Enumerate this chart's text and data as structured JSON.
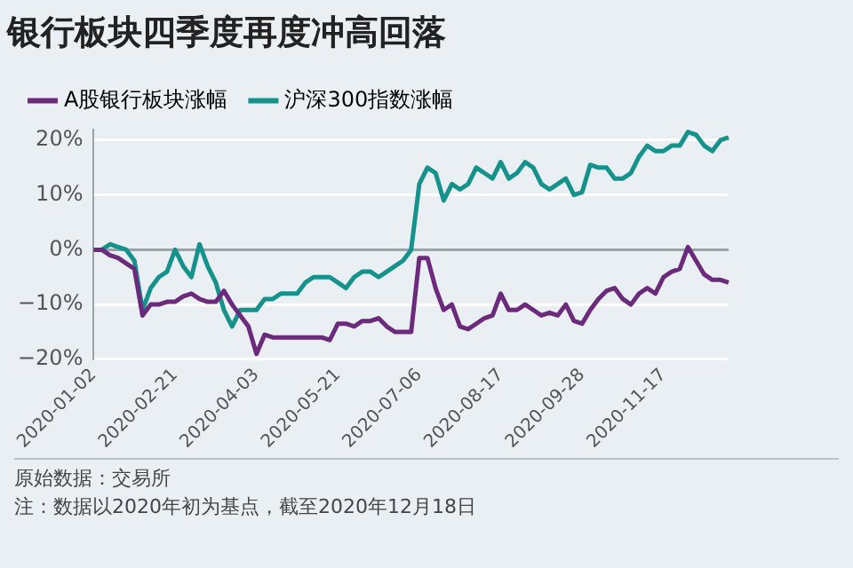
{
  "chart_data": {
    "type": "line",
    "title": "银行板块四季度再度冲高回落",
    "categories": [
      "2020-01-02",
      null,
      null,
      null,
      null,
      null,
      null,
      null,
      null,
      null,
      "2020-02-21",
      null,
      null,
      null,
      null,
      null,
      null,
      null,
      null,
      null,
      "2020-04-03",
      null,
      null,
      null,
      null,
      null,
      null,
      null,
      null,
      null,
      "2020-05-21",
      null,
      null,
      null,
      null,
      null,
      null,
      null,
      null,
      null,
      "2020-07-06",
      null,
      null,
      null,
      null,
      null,
      null,
      null,
      null,
      null,
      "2020-08-17",
      null,
      null,
      null,
      null,
      null,
      null,
      null,
      null,
      null,
      "2020-09-28",
      null,
      null,
      null,
      null,
      null,
      null,
      null,
      null,
      null,
      "2020-11-17",
      null,
      null,
      null,
      null,
      null,
      null,
      null,
      null
    ],
    "series": [
      {
        "name": "A股银行板块涨幅",
        "color": "#6b2a7c",
        "values": [
          0,
          0,
          -1,
          -1.5,
          -2.5,
          -3.5,
          -12,
          -10,
          -10,
          -9.5,
          -9.5,
          -8.5,
          -8,
          -9,
          -9.5,
          -9.5,
          -7.5,
          -10,
          -12,
          -14,
          -19,
          -15.5,
          -16,
          -16,
          -16,
          -16,
          -16,
          -16,
          -16,
          -16.5,
          -13.5,
          -13.5,
          -14,
          -13,
          -13,
          -12.5,
          -14,
          -15,
          -15,
          -15,
          -1.5,
          -1.5,
          -7,
          -11,
          -10,
          -14,
          -14.5,
          -13.5,
          -12.5,
          -12,
          -8,
          -11,
          -11,
          -10,
          -11,
          -12,
          -11.5,
          -12,
          -10,
          -13,
          -13.5,
          -11,
          -9,
          -7.5,
          -7,
          -9,
          -10,
          -8,
          -7,
          -8,
          -5,
          -4,
          -3.5,
          0.5,
          -2,
          -4.5,
          -5.5,
          -5.5,
          -6
        ]
      },
      {
        "name": "沪深300指数涨幅",
        "color": "#15928c",
        "values": [
          0,
          0,
          1,
          0.5,
          0,
          -2,
          -11,
          -7,
          -5,
          -4,
          0,
          -3,
          -5,
          1,
          -3,
          -6,
          -11,
          -14,
          -11,
          -11,
          -11,
          -9,
          -9,
          -8,
          -8,
          -8,
          -6,
          -5,
          -5,
          -5,
          -6,
          -7,
          -5,
          -4,
          -4,
          -5,
          -4,
          -3,
          -2,
          0,
          12,
          15,
          14,
          9,
          12,
          11,
          12,
          15,
          14,
          13,
          16,
          13,
          14,
          16,
          15,
          12,
          11,
          12,
          13,
          10,
          10.5,
          15.5,
          15,
          15,
          13,
          13,
          14,
          17,
          19,
          18,
          18,
          19,
          19,
          21.5,
          21,
          19,
          18,
          20,
          20.5
        ]
      }
    ],
    "ylim": [
      -20,
      22
    ],
    "yticks": [
      {
        "value": -20,
        "label": "−20%"
      },
      {
        "value": -10,
        "label": "−10%"
      },
      {
        "value": 0,
        "label": "0%"
      },
      {
        "value": 10,
        "label": "10%"
      },
      {
        "value": 20,
        "label": "20%"
      }
    ],
    "grid": "y",
    "legend": "top left",
    "marker": "none",
    "line_style": "solid",
    "annotations": [
      "原始数据：交易所",
      "注：数据以2020年初为基点，截至2020年12月18日"
    ]
  }
}
